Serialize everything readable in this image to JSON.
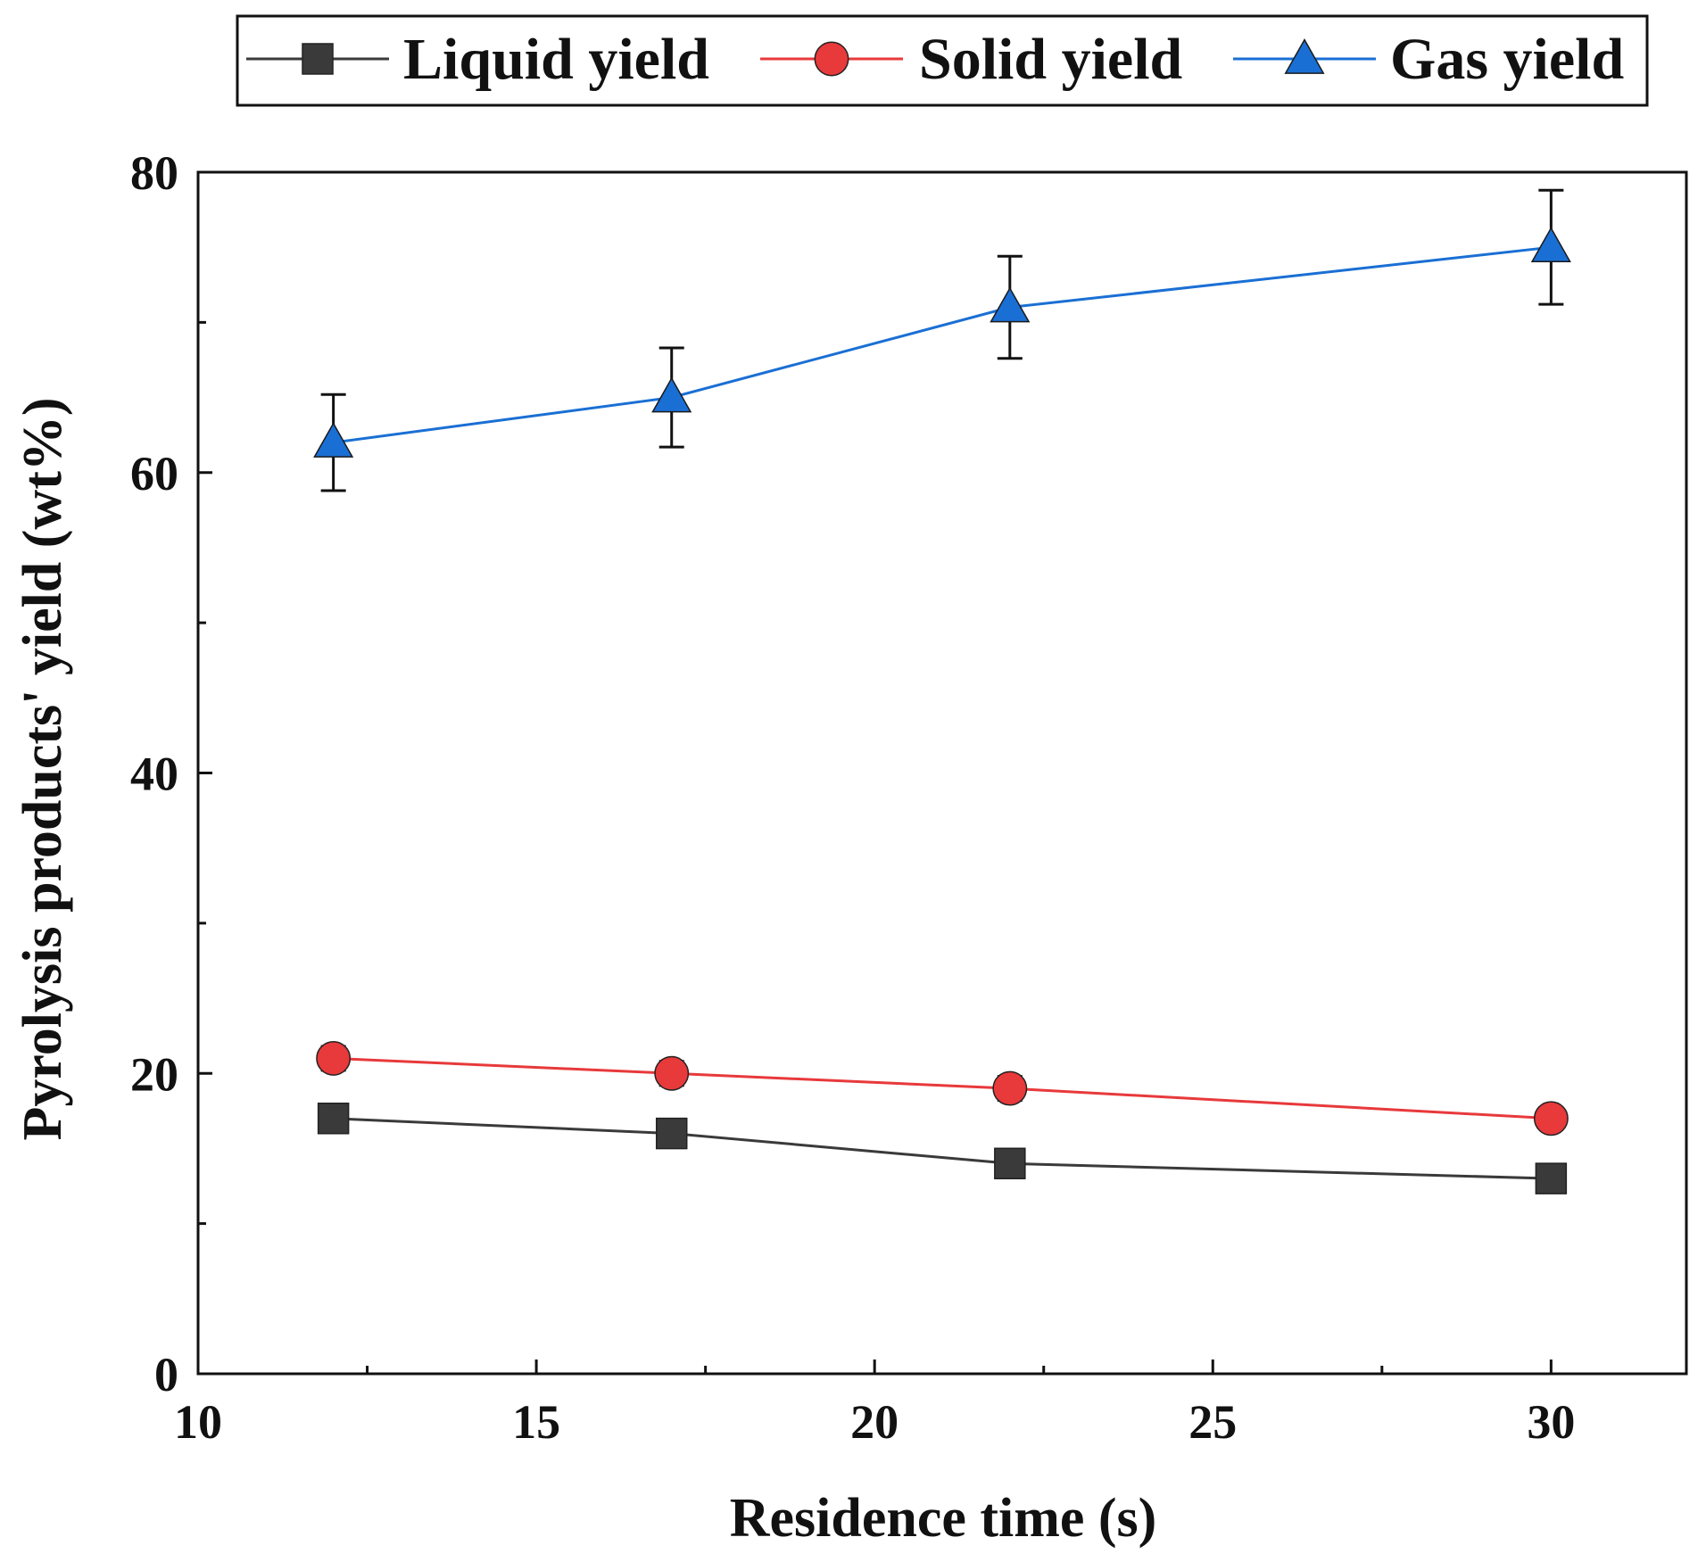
{
  "chart_data": {
    "type": "line",
    "title": "",
    "xlabel": "Residence time (s)",
    "ylabel": "Pyrolysis products' yield (wt%)",
    "xlim": [
      10,
      32
    ],
    "ylim": [
      0,
      80
    ],
    "x_ticks": [
      10,
      15,
      20,
      25,
      30
    ],
    "x_minor_ticks": [
      12.5,
      17.5,
      22.5,
      27.5
    ],
    "y_ticks": [
      0,
      20,
      40,
      60,
      80
    ],
    "y_minor_ticks": [
      10,
      30,
      50,
      70
    ],
    "legend_position": "top",
    "x": [
      12,
      17,
      22,
      30
    ],
    "series": [
      {
        "name": "Liquid yield",
        "marker": "square",
        "color": "#3a3a3a",
        "values": [
          17,
          16,
          14,
          13
        ],
        "errors": [
          0.7,
          0.7,
          0.7,
          0.6
        ]
      },
      {
        "name": "Solid yield",
        "marker": "circle",
        "color": "#e8393b",
        "values": [
          21,
          20,
          19,
          17
        ],
        "errors": [
          0.8,
          0.8,
          0.8,
          0.7
        ]
      },
      {
        "name": "Gas yield",
        "marker": "triangle",
        "color": "#1a6fd4",
        "values": [
          62,
          65,
          71,
          75
        ],
        "errors": [
          3.2,
          3.3,
          3.4,
          3.8
        ]
      }
    ]
  }
}
